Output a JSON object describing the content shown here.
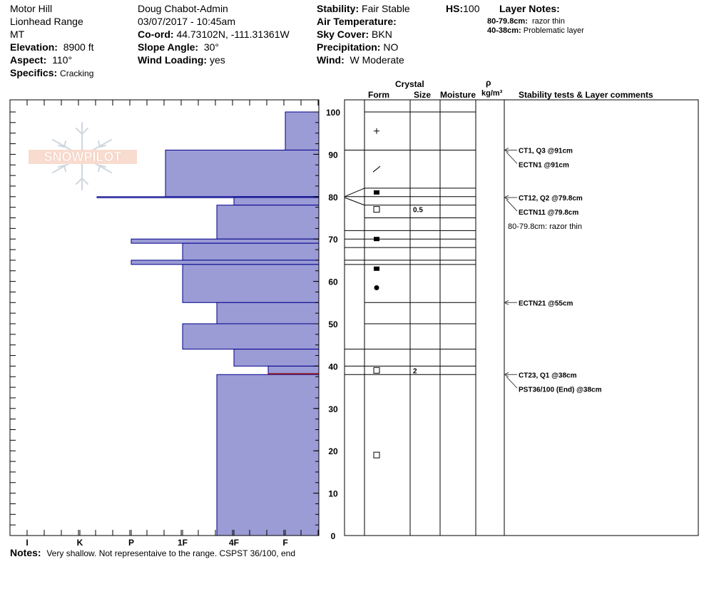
{
  "header": {
    "location": "Motor Hill",
    "range": "Lionhead Range",
    "state": "MT",
    "elevation_label": "Elevation:",
    "elevation_value": "8900 ft",
    "aspect_label": "Aspect:",
    "aspect_value": "110°",
    "specifics_label": "Specifics:",
    "specifics_value": "Cracking",
    "observer": "Doug Chabot-Admin",
    "datetime": "03/07/2017 - 10:45am",
    "coord_label": "Co-ord:",
    "coord_value": "44.73102N, -111.31361W",
    "slope_label": "Slope Angle:",
    "slope_value": "30°",
    "wind_loading_label": "Wind Loading:",
    "wind_loading_value": "yes",
    "stability_label": "Stability:",
    "stability_value": "Fair Stable",
    "air_temp_label": "Air Temperature:",
    "air_temp_value": "",
    "sky_label": "Sky Cover:",
    "sky_value": "BKN",
    "precip_label": "Precipitation:",
    "precip_value": "NO",
    "wind_label": "Wind:",
    "wind_value": "W Moderate",
    "hs_label": "HS:",
    "hs_value": "100",
    "layer_notes_label": "Layer Notes:",
    "layer_notes": [
      {
        "range": "80-79.8cm:",
        "text": "razor thin"
      },
      {
        "range": "40-38cm:",
        "text": "Problematic layer"
      }
    ]
  },
  "logo_text": "SNOWPILOT",
  "columns": {
    "crystal": "Crystal",
    "form": "Form",
    "size": "Size",
    "moisture": "Moisture",
    "rho": "ρ",
    "density_unit": "kg/m³",
    "stability": "Stability tests & Layer comments"
  },
  "notes_label": "Notes:",
  "notes_value": "Very shallow. Not representaive to the range. CSPST 36/100, end",
  "colors": {
    "fill": "#9b9bd6",
    "edge": "#00008b",
    "red": "#8b1a2a",
    "grid": "#000000"
  },
  "chart_data": {
    "type": "bar",
    "orientation": "horizontal",
    "x_axis_labels": [
      "I",
      "K",
      "P",
      "1F",
      "4F",
      "F"
    ],
    "ylim": [
      0,
      100
    ],
    "y_ticks": [
      0,
      10,
      20,
      30,
      40,
      50,
      60,
      70,
      80,
      90,
      100
    ],
    "hardness_layers": [
      {
        "top": 100,
        "bottom": 91,
        "hardness": "F"
      },
      {
        "top": 91,
        "bottom": 80,
        "hardness": "1F+"
      },
      {
        "top": 80,
        "bottom": 79.8,
        "hardness": "K-P"
      },
      {
        "top": 79.8,
        "bottom": 78,
        "hardness": "4F+"
      },
      {
        "top": 78,
        "bottom": 70,
        "hardness": "4F-"
      },
      {
        "top": 70,
        "bottom": 69,
        "hardness": "P"
      },
      {
        "top": 69,
        "bottom": 65,
        "hardness": "1F"
      },
      {
        "top": 65,
        "bottom": 64,
        "hardness": "P"
      },
      {
        "top": 64,
        "bottom": 55,
        "hardness": "1F"
      },
      {
        "top": 55,
        "bottom": 50,
        "hardness": "4F-"
      },
      {
        "top": 50,
        "bottom": 44,
        "hardness": "1F"
      },
      {
        "top": 44,
        "bottom": 40,
        "hardness": "4F+"
      },
      {
        "top": 40,
        "bottom": 38,
        "hardness": "F-"
      },
      {
        "top": 38,
        "bottom": 0,
        "hardness": "4F-"
      }
    ],
    "layer_boundaries": [
      100,
      91,
      82,
      80,
      78,
      75,
      72,
      70,
      68,
      65,
      64,
      55,
      50,
      44,
      40,
      38,
      0
    ],
    "grain_forms": [
      {
        "height": 95.5,
        "symbol": "+"
      },
      {
        "height": 86.5,
        "symbol": "/"
      },
      {
        "height": 81,
        "symbol": "■"
      },
      {
        "height": 77,
        "symbol": "□",
        "size": "0.5"
      },
      {
        "height": 70,
        "symbol": "■"
      },
      {
        "height": 63,
        "symbol": "■"
      },
      {
        "height": 58.5,
        "symbol": "●"
      },
      {
        "height": 39,
        "symbol": "□",
        "size": "2"
      },
      {
        "height": 19,
        "symbol": "□"
      }
    ],
    "stability_tests": [
      {
        "height": 91,
        "labels": [
          "CT1, Q3 @91cm",
          "ECTN1 @91cm"
        ]
      },
      {
        "height": 79.8,
        "labels": [
          "CT12, Q2 @79.8cm",
          "ECTN11 @79.8cm"
        ],
        "comment": "80-79.8cm:  razor thin"
      },
      {
        "height": 55,
        "labels": [
          "ECTN21 @55cm"
        ]
      },
      {
        "height": 38,
        "labels": [
          "CT23, Q1 @38cm",
          "PST36/100 (End) @38cm"
        ]
      }
    ]
  }
}
